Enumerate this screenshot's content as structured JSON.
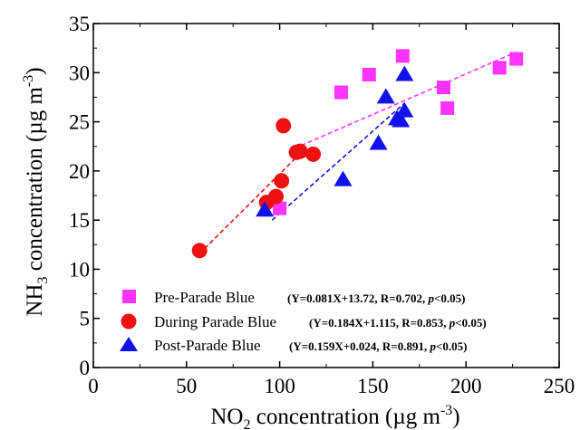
{
  "chart_data": {
    "type": "scatter",
    "xlabel": {
      "main": "NO",
      "sub": "2",
      "rest": " concentration (µg m",
      "sup": "-3",
      "end": ")"
    },
    "ylabel": {
      "main": "NH",
      "sub": "3",
      "rest": " concentration (µg m",
      "sup": "-3",
      "end": ")"
    },
    "xlim": [
      0,
      250
    ],
    "ylim": [
      0,
      35
    ],
    "xticks": [
      "0",
      "50",
      "100",
      "150",
      "200",
      "250"
    ],
    "yticks": [
      "0",
      "5",
      "10",
      "15",
      "20",
      "25",
      "30",
      "35"
    ],
    "grid": false,
    "legend_position": "bottom-right",
    "series": [
      {
        "name": "Pre-Parade Blue",
        "equation": {
          "pre": "(Y=0.081X+13.72, R=0.702, ",
          "p": "p",
          "post": "<0.05)"
        },
        "color": "#ff33ff",
        "marker": "square",
        "points": [
          [
            100,
            16.2
          ],
          [
            133,
            28
          ],
          [
            148,
            29.8
          ],
          [
            166,
            31.7
          ],
          [
            188,
            28.5
          ],
          [
            190,
            26.4
          ],
          [
            218,
            30.5
          ],
          [
            227,
            31.4
          ]
        ],
        "fit": {
          "x": [
            108,
            227
          ],
          "y": [
            22.3,
            32.1
          ]
        }
      },
      {
        "name": "During Parade Blue",
        "equation": {
          "pre": "(Y=0.184X+1.115, R=0.853, ",
          "p": "p",
          "post": "<0.05)"
        },
        "color": "#ee1111",
        "marker": "circle",
        "points": [
          [
            57,
            11.9
          ],
          [
            93,
            16.8
          ],
          [
            98,
            17.4
          ],
          [
            101,
            19
          ],
          [
            102,
            24.6
          ],
          [
            109,
            21.9
          ],
          [
            111,
            22
          ],
          [
            118,
            21.7
          ]
        ],
        "fit": {
          "x": [
            57,
            108
          ],
          "y": [
            11.6,
            21.2
          ]
        }
      },
      {
        "name": "Post-Parade Blue",
        "equation": {
          "pre": "(Y=0.159X+0.024, R=0.891, ",
          "p": "p",
          "post": "<0.05)"
        },
        "color": "#1111ee",
        "marker": "triangle",
        "points": [
          [
            92,
            16
          ],
          [
            134,
            19.1
          ],
          [
            153,
            22.8
          ],
          [
            157,
            27.5
          ],
          [
            163,
            25.3
          ],
          [
            165,
            25.1
          ],
          [
            167,
            26.1
          ],
          [
            167,
            29.8
          ]
        ],
        "fit": {
          "x": [
            96,
            167
          ],
          "y": [
            15,
            26.9
          ]
        }
      }
    ]
  }
}
